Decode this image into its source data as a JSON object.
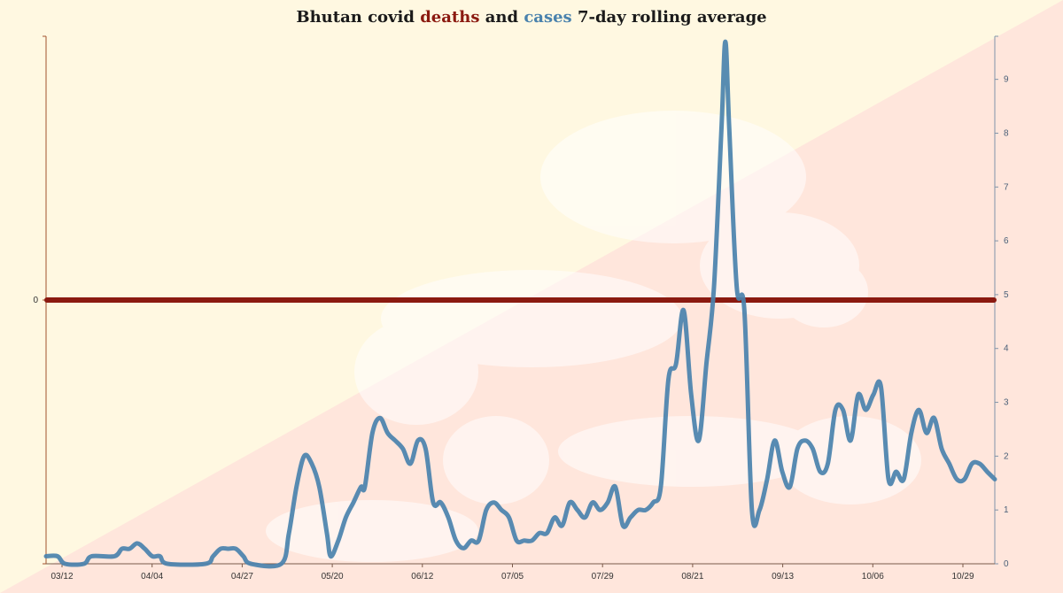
{
  "colors": {
    "deaths": "#8b1a10",
    "cases": "#4a82ad",
    "axis_left": "#a0522d",
    "axis_right": "#7f93a8",
    "bg_yellow": "#fff8e1",
    "bg_orange": "#ffe6dc"
  },
  "title": {
    "prefix": "Bhutan covid ",
    "deaths_word": "deaths",
    "middle": " and ",
    "cases_word": "cases",
    "suffix": " 7-day rolling average"
  },
  "background_emblem": "bhutan-flag-dragon-watermark",
  "chart_data": {
    "type": "line",
    "title": "Bhutan covid deaths and cases 7-day rolling average",
    "x_tick_labels": [
      "03/12",
      "04/04",
      "04/27",
      "05/20",
      "06/12",
      "07/05",
      "07/29",
      "08/21",
      "09/13",
      "10/06",
      "10/29"
    ],
    "left_axis": {
      "ticks": [
        "0"
      ]
    },
    "right_axis": {
      "ylim": [
        0,
        9.8
      ],
      "ticks": [
        "0",
        "1",
        "2",
        "3",
        "4",
        "5",
        "6",
        "7",
        "8",
        "9"
      ]
    },
    "grid": false,
    "series": [
      {
        "name": "deaths",
        "axis": "left",
        "points": [
          [
            0,
            0
          ],
          [
            241,
            0
          ]
        ]
      },
      {
        "name": "cases",
        "axis": "right",
        "points": [
          [
            0,
            0.14
          ],
          [
            3,
            0.14
          ],
          [
            5,
            0.0
          ],
          [
            10,
            0.0
          ],
          [
            12,
            0.14
          ],
          [
            18,
            0.14
          ],
          [
            20,
            0.28
          ],
          [
            22,
            0.28
          ],
          [
            24,
            0.38
          ],
          [
            26,
            0.28
          ],
          [
            28,
            0.14
          ],
          [
            30,
            0.14
          ],
          [
            32,
            0.0
          ],
          [
            42,
            0.0
          ],
          [
            44,
            0.14
          ],
          [
            46,
            0.28
          ],
          [
            48,
            0.28
          ],
          [
            50,
            0.28
          ],
          [
            52,
            0.14
          ],
          [
            54,
            0.0
          ],
          [
            62,
            0.0
          ],
          [
            64,
            0.57
          ],
          [
            66,
            1.43
          ],
          [
            68,
            2.0
          ],
          [
            70,
            1.86
          ],
          [
            72,
            1.43
          ],
          [
            74,
            0.57
          ],
          [
            75,
            0.14
          ],
          [
            77,
            0.43
          ],
          [
            79,
            0.86
          ],
          [
            81,
            1.14
          ],
          [
            83,
            1.43
          ],
          [
            84,
            1.43
          ],
          [
            86,
            2.43
          ],
          [
            88,
            2.71
          ],
          [
            90,
            2.43
          ],
          [
            92,
            2.29
          ],
          [
            94,
            2.14
          ],
          [
            96,
            1.86
          ],
          [
            98,
            2.29
          ],
          [
            100,
            2.14
          ],
          [
            102,
            1.14
          ],
          [
            104,
            1.14
          ],
          [
            106,
            0.86
          ],
          [
            108,
            0.43
          ],
          [
            110,
            0.29
          ],
          [
            112,
            0.43
          ],
          [
            114,
            0.43
          ],
          [
            116,
            1.0
          ],
          [
            118,
            1.14
          ],
          [
            120,
            1.0
          ],
          [
            122,
            0.86
          ],
          [
            124,
            0.43
          ],
          [
            126,
            0.43
          ],
          [
            128,
            0.43
          ],
          [
            130,
            0.57
          ],
          [
            132,
            0.57
          ],
          [
            134,
            0.86
          ],
          [
            136,
            0.71
          ],
          [
            138,
            1.14
          ],
          [
            140,
            1.0
          ],
          [
            142,
            0.86
          ],
          [
            144,
            1.14
          ],
          [
            146,
            1.0
          ],
          [
            148,
            1.14
          ],
          [
            150,
            1.43
          ],
          [
            152,
            0.71
          ],
          [
            154,
            0.86
          ],
          [
            156,
            1.0
          ],
          [
            158,
            1.0
          ],
          [
            160,
            1.14
          ],
          [
            162,
            1.43
          ],
          [
            164,
            3.43
          ],
          [
            166,
            3.71
          ],
          [
            168,
            4.71
          ],
          [
            170,
            3.14
          ],
          [
            172,
            2.29
          ],
          [
            174,
            3.71
          ],
          [
            176,
            5.14
          ],
          [
            178,
            8.14
          ],
          [
            179,
            9.7
          ],
          [
            180,
            8.14
          ],
          [
            182,
            5.14
          ],
          [
            184,
            4.71
          ],
          [
            186,
            1.0
          ],
          [
            188,
            1.0
          ],
          [
            190,
            1.57
          ],
          [
            192,
            2.29
          ],
          [
            194,
            1.71
          ],
          [
            196,
            1.43
          ],
          [
            198,
            2.14
          ],
          [
            200,
            2.29
          ],
          [
            202,
            2.14
          ],
          [
            204,
            1.71
          ],
          [
            206,
            1.86
          ],
          [
            208,
            2.86
          ],
          [
            210,
            2.86
          ],
          [
            212,
            2.29
          ],
          [
            214,
            3.14
          ],
          [
            216,
            2.86
          ],
          [
            218,
            3.14
          ],
          [
            220,
            3.29
          ],
          [
            222,
            1.57
          ],
          [
            224,
            1.71
          ],
          [
            226,
            1.57
          ],
          [
            228,
            2.43
          ],
          [
            230,
            2.86
          ],
          [
            232,
            2.43
          ],
          [
            234,
            2.71
          ],
          [
            236,
            2.14
          ],
          [
            238,
            1.86
          ],
          [
            240,
            1.57
          ],
          [
            242,
            1.57
          ],
          [
            244,
            1.86
          ],
          [
            246,
            1.86
          ],
          [
            248,
            1.71
          ],
          [
            250,
            1.57
          ]
        ]
      }
    ]
  }
}
